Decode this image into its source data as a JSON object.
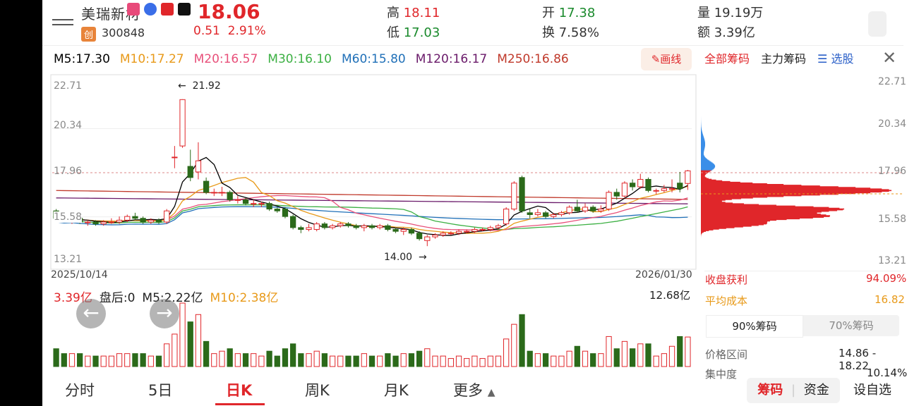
{
  "header": {
    "stock_name": "美瑞新材",
    "board_tag": "创",
    "code": "300848",
    "price": "18.06",
    "change": "0.51",
    "change_pct": "2.91%",
    "high_label": "高",
    "high": "18.11",
    "low_label": "低",
    "low": "17.03",
    "open_label": "开",
    "open": "17.38",
    "turnover_label": "换",
    "turnover": "7.58%",
    "volume_label": "量",
    "volume": "19.19万",
    "amount_label": "额",
    "amount": "3.39亿"
  },
  "ma": {
    "m5": "M5:17.30",
    "m10": "M10:17.27",
    "m20": "M20:16.57",
    "m30": "M30:16.10",
    "m60": "M60:15.80",
    "m120": "M120:16.17",
    "m250": "M250:16.86"
  },
  "draw_button": "画线",
  "right_tabs": {
    "all_chips": "全部筹码",
    "main_chips": "主力筹码",
    "select_stock": "选股"
  },
  "price_axis": {
    "top": "22.71",
    "p2": "20.34",
    "p3": "17.96",
    "p4": "15.58",
    "bottom": "13.21"
  },
  "annotations": {
    "max": "21.92",
    "min": "14.00"
  },
  "dates": {
    "start": "2025/10/14",
    "end": "2026/01/30"
  },
  "volume_legend": {
    "vol": "3.39亿",
    "after": "盘后:0",
    "m5": "M5:2.22亿",
    "m10": "M10:2.38亿",
    "max": "12.68亿"
  },
  "chip_stats": {
    "profit_label": "收盘获利",
    "profit": "94.09%",
    "avg_cost_label": "平均成本",
    "avg_cost": "16.82",
    "tab_90": "90%筹码",
    "tab_70": "70%筹码",
    "range_label": "价格区间",
    "range": "14.86 - 18.22",
    "conc_label": "集中度",
    "conc": "10.14%"
  },
  "bottom_tabs": [
    "分时",
    "5日",
    "日K",
    "周K",
    "月K",
    "更多"
  ],
  "bottom_buttons": {
    "chips": "筹码",
    "funds": "资金",
    "settings": "设自选"
  },
  "colors": {
    "up": "#e0262a",
    "down": "#2b6a1a",
    "m5": "#000000",
    "m10": "#e89a1a",
    "m20": "#e8507a",
    "m30": "#3cb043",
    "m60": "#2070b8",
    "m120": "#6a1a6a",
    "m250": "#c0392b"
  },
  "chart_data": {
    "type": "candlestick",
    "x_range": [
      "2025/10/14",
      "2026/01/30"
    ],
    "y_range": [
      13.21,
      22.71
    ],
    "max_annotation": 21.92,
    "min_annotation": 14.0,
    "candles": [
      {
        "o": 15.9,
        "c": 15.5,
        "h": 16.0,
        "l": 15.4
      },
      {
        "o": 15.6,
        "c": 15.4,
        "h": 15.7,
        "l": 15.3
      },
      {
        "o": 15.4,
        "c": 15.5,
        "h": 15.6,
        "l": 15.2
      },
      {
        "o": 15.5,
        "c": 15.3,
        "h": 15.6,
        "l": 15.2
      },
      {
        "o": 15.3,
        "c": 15.3,
        "h": 15.4,
        "l": 15.1
      },
      {
        "o": 15.3,
        "c": 15.2,
        "h": 15.4,
        "l": 15.1
      },
      {
        "o": 15.2,
        "c": 15.3,
        "h": 15.4,
        "l": 15.1
      },
      {
        "o": 15.3,
        "c": 15.3,
        "h": 15.5,
        "l": 15.2
      },
      {
        "o": 15.3,
        "c": 15.4,
        "h": 15.6,
        "l": 15.2
      },
      {
        "o": 15.4,
        "c": 15.6,
        "h": 15.7,
        "l": 15.3
      },
      {
        "o": 15.6,
        "c": 15.5,
        "h": 15.8,
        "l": 15.4
      },
      {
        "o": 15.5,
        "c": 15.3,
        "h": 15.6,
        "l": 15.2
      },
      {
        "o": 15.3,
        "c": 15.4,
        "h": 15.5,
        "l": 15.2
      },
      {
        "o": 15.4,
        "c": 15.3,
        "h": 15.5,
        "l": 15.2
      },
      {
        "o": 15.3,
        "c": 15.9,
        "h": 16.0,
        "l": 15.2
      },
      {
        "o": 18.8,
        "c": 18.8,
        "h": 19.4,
        "l": 18.2
      },
      {
        "o": 19.4,
        "c": 21.9,
        "h": 21.92,
        "l": 19.3
      },
      {
        "o": 18.3,
        "c": 17.7,
        "h": 19.2,
        "l": 17.5
      },
      {
        "o": 18.0,
        "c": 18.6,
        "h": 19.6,
        "l": 17.6
      },
      {
        "o": 17.5,
        "c": 16.9,
        "h": 17.7,
        "l": 16.8
      },
      {
        "o": 16.9,
        "c": 16.9,
        "h": 17.1,
        "l": 16.7
      },
      {
        "o": 16.9,
        "c": 16.9,
        "h": 17.2,
        "l": 16.7
      },
      {
        "o": 16.9,
        "c": 16.5,
        "h": 17.0,
        "l": 16.4
      },
      {
        "o": 16.5,
        "c": 16.5,
        "h": 16.7,
        "l": 16.3
      },
      {
        "o": 16.5,
        "c": 16.3,
        "h": 16.6,
        "l": 16.2
      },
      {
        "o": 16.3,
        "c": 16.3,
        "h": 16.5,
        "l": 16.1
      },
      {
        "o": 16.3,
        "c": 16.3,
        "h": 16.4,
        "l": 16.1
      },
      {
        "o": 16.3,
        "c": 16.0,
        "h": 16.4,
        "l": 15.9
      },
      {
        "o": 16.0,
        "c": 15.9,
        "h": 16.1,
        "l": 15.8
      },
      {
        "o": 16.0,
        "c": 15.6,
        "h": 16.1,
        "l": 15.5
      },
      {
        "o": 15.6,
        "c": 15.0,
        "h": 15.7,
        "l": 14.9
      },
      {
        "o": 15.0,
        "c": 14.9,
        "h": 15.1,
        "l": 14.7
      },
      {
        "o": 14.9,
        "c": 15.0,
        "h": 15.2,
        "l": 14.8
      },
      {
        "o": 14.9,
        "c": 15.2,
        "h": 15.3,
        "l": 14.8
      },
      {
        "o": 15.2,
        "c": 15.0,
        "h": 15.3,
        "l": 14.9
      },
      {
        "o": 15.0,
        "c": 15.1,
        "h": 15.2,
        "l": 14.9
      },
      {
        "o": 15.1,
        "c": 15.2,
        "h": 15.3,
        "l": 15.0
      },
      {
        "o": 15.2,
        "c": 15.1,
        "h": 15.3,
        "l": 15.0
      },
      {
        "o": 15.1,
        "c": 15.0,
        "h": 15.2,
        "l": 14.9
      },
      {
        "o": 15.0,
        "c": 15.1,
        "h": 15.2,
        "l": 14.8
      },
      {
        "o": 15.1,
        "c": 15.0,
        "h": 15.2,
        "l": 14.9
      },
      {
        "o": 15.0,
        "c": 15.1,
        "h": 15.2,
        "l": 14.9
      },
      {
        "o": 15.1,
        "c": 14.9,
        "h": 15.2,
        "l": 14.8
      },
      {
        "o": 14.9,
        "c": 14.8,
        "h": 15.0,
        "l": 14.7
      },
      {
        "o": 14.8,
        "c": 14.9,
        "h": 15.0,
        "l": 14.6
      },
      {
        "o": 14.9,
        "c": 14.7,
        "h": 15.0,
        "l": 14.6
      },
      {
        "o": 14.7,
        "c": 14.4,
        "h": 14.8,
        "l": 14.3
      },
      {
        "o": 14.3,
        "c": 14.5,
        "h": 14.6,
        "l": 14.0
      },
      {
        "o": 14.5,
        "c": 14.6,
        "h": 14.7,
        "l": 14.4
      },
      {
        "o": 14.6,
        "c": 14.7,
        "h": 14.8,
        "l": 14.5
      },
      {
        "o": 14.7,
        "c": 14.7,
        "h": 14.8,
        "l": 14.6
      },
      {
        "o": 14.7,
        "c": 14.8,
        "h": 14.9,
        "l": 14.6
      },
      {
        "o": 14.8,
        "c": 14.8,
        "h": 14.9,
        "l": 14.7
      },
      {
        "o": 14.8,
        "c": 14.9,
        "h": 15.0,
        "l": 14.7
      },
      {
        "o": 14.9,
        "c": 14.9,
        "h": 15.0,
        "l": 14.8
      },
      {
        "o": 14.9,
        "c": 15.0,
        "h": 15.1,
        "l": 14.8
      },
      {
        "o": 15.0,
        "c": 15.1,
        "h": 15.2,
        "l": 14.9
      },
      {
        "o": 15.2,
        "c": 16.0,
        "h": 16.1,
        "l": 15.1
      },
      {
        "o": 16.0,
        "c": 17.4,
        "h": 17.5,
        "l": 15.9
      },
      {
        "o": 17.7,
        "c": 15.9,
        "h": 17.8,
        "l": 15.8
      },
      {
        "o": 15.8,
        "c": 15.7,
        "h": 16.0,
        "l": 15.5
      },
      {
        "o": 15.7,
        "c": 15.8,
        "h": 16.0,
        "l": 15.6
      },
      {
        "o": 15.8,
        "c": 15.6,
        "h": 15.9,
        "l": 15.5
      },
      {
        "o": 15.6,
        "c": 15.7,
        "h": 15.8,
        "l": 15.5
      },
      {
        "o": 15.7,
        "c": 15.8,
        "h": 15.9,
        "l": 15.6
      },
      {
        "o": 15.8,
        "c": 16.1,
        "h": 16.2,
        "l": 15.7
      },
      {
        "o": 16.1,
        "c": 15.9,
        "h": 16.5,
        "l": 15.8
      },
      {
        "o": 15.9,
        "c": 16.1,
        "h": 16.3,
        "l": 15.8
      },
      {
        "o": 16.1,
        "c": 15.9,
        "h": 16.2,
        "l": 15.8
      },
      {
        "o": 15.9,
        "c": 16.0,
        "h": 16.2,
        "l": 15.8
      },
      {
        "o": 16.0,
        "c": 16.9,
        "h": 17.0,
        "l": 15.9
      },
      {
        "o": 16.9,
        "c": 16.7,
        "h": 17.1,
        "l": 16.5
      },
      {
        "o": 16.7,
        "c": 17.4,
        "h": 17.5,
        "l": 16.6
      },
      {
        "o": 17.4,
        "c": 17.2,
        "h": 17.6,
        "l": 17.0
      },
      {
        "o": 17.2,
        "c": 17.6,
        "h": 17.9,
        "l": 17.1
      },
      {
        "o": 17.6,
        "c": 17.0,
        "h": 17.7,
        "l": 16.9
      },
      {
        "o": 17.0,
        "c": 17.0,
        "h": 17.1,
        "l": 16.8
      },
      {
        "o": 17.0,
        "c": 17.1,
        "h": 17.3,
        "l": 16.9
      },
      {
        "o": 17.1,
        "c": 17.1,
        "h": 17.6,
        "l": 16.9
      },
      {
        "o": 17.4,
        "c": 17.1,
        "h": 18.0,
        "l": 16.9
      },
      {
        "o": 17.38,
        "c": 18.06,
        "h": 18.11,
        "l": 17.03
      }
    ],
    "chip_distribution": {
      "y_range": [
        13.21,
        22.71
      ],
      "peak_price": 17.0
    }
  }
}
